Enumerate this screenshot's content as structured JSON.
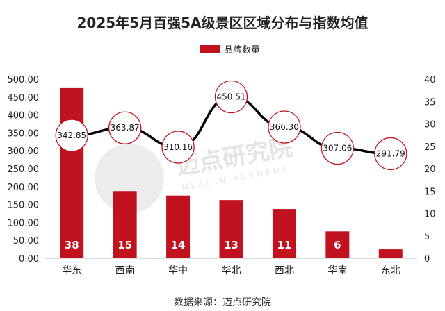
{
  "chart_data": {
    "type": "bar+line",
    "title": "2025年5月百强5A级景区区域分布与指数均值",
    "legend": [
      "品牌数量"
    ],
    "categories": [
      "华东",
      "西南",
      "华中",
      "华北",
      "西北",
      "华南",
      "东北"
    ],
    "bar_series": {
      "name": "品牌数量",
      "values": [
        38,
        15,
        14,
        13,
        11,
        6,
        2
      ],
      "axis": "right",
      "color": "#c0121f"
    },
    "line_series": {
      "values": [
        342.85,
        363.87,
        310.16,
        450.51,
        366.3,
        307.06,
        291.79
      ],
      "axis": "left",
      "color": "#000000"
    },
    "left_axis": {
      "ylim": [
        0,
        500
      ],
      "ticks": [
        "0.00",
        "50.00",
        "100.00",
        "150.00",
        "200.00",
        "250.00",
        "300.00",
        "350.00",
        "400.00",
        "450.00",
        "500.00"
      ]
    },
    "right_axis": {
      "ylim": [
        0,
        40
      ],
      "ticks": [
        "0",
        "5",
        "10",
        "15",
        "20",
        "25",
        "30",
        "35",
        "40"
      ]
    },
    "source": "数据来源：迈点研究院",
    "watermark": "迈点研究院",
    "watermark_sub": "MEADIN ACADEMY"
  }
}
